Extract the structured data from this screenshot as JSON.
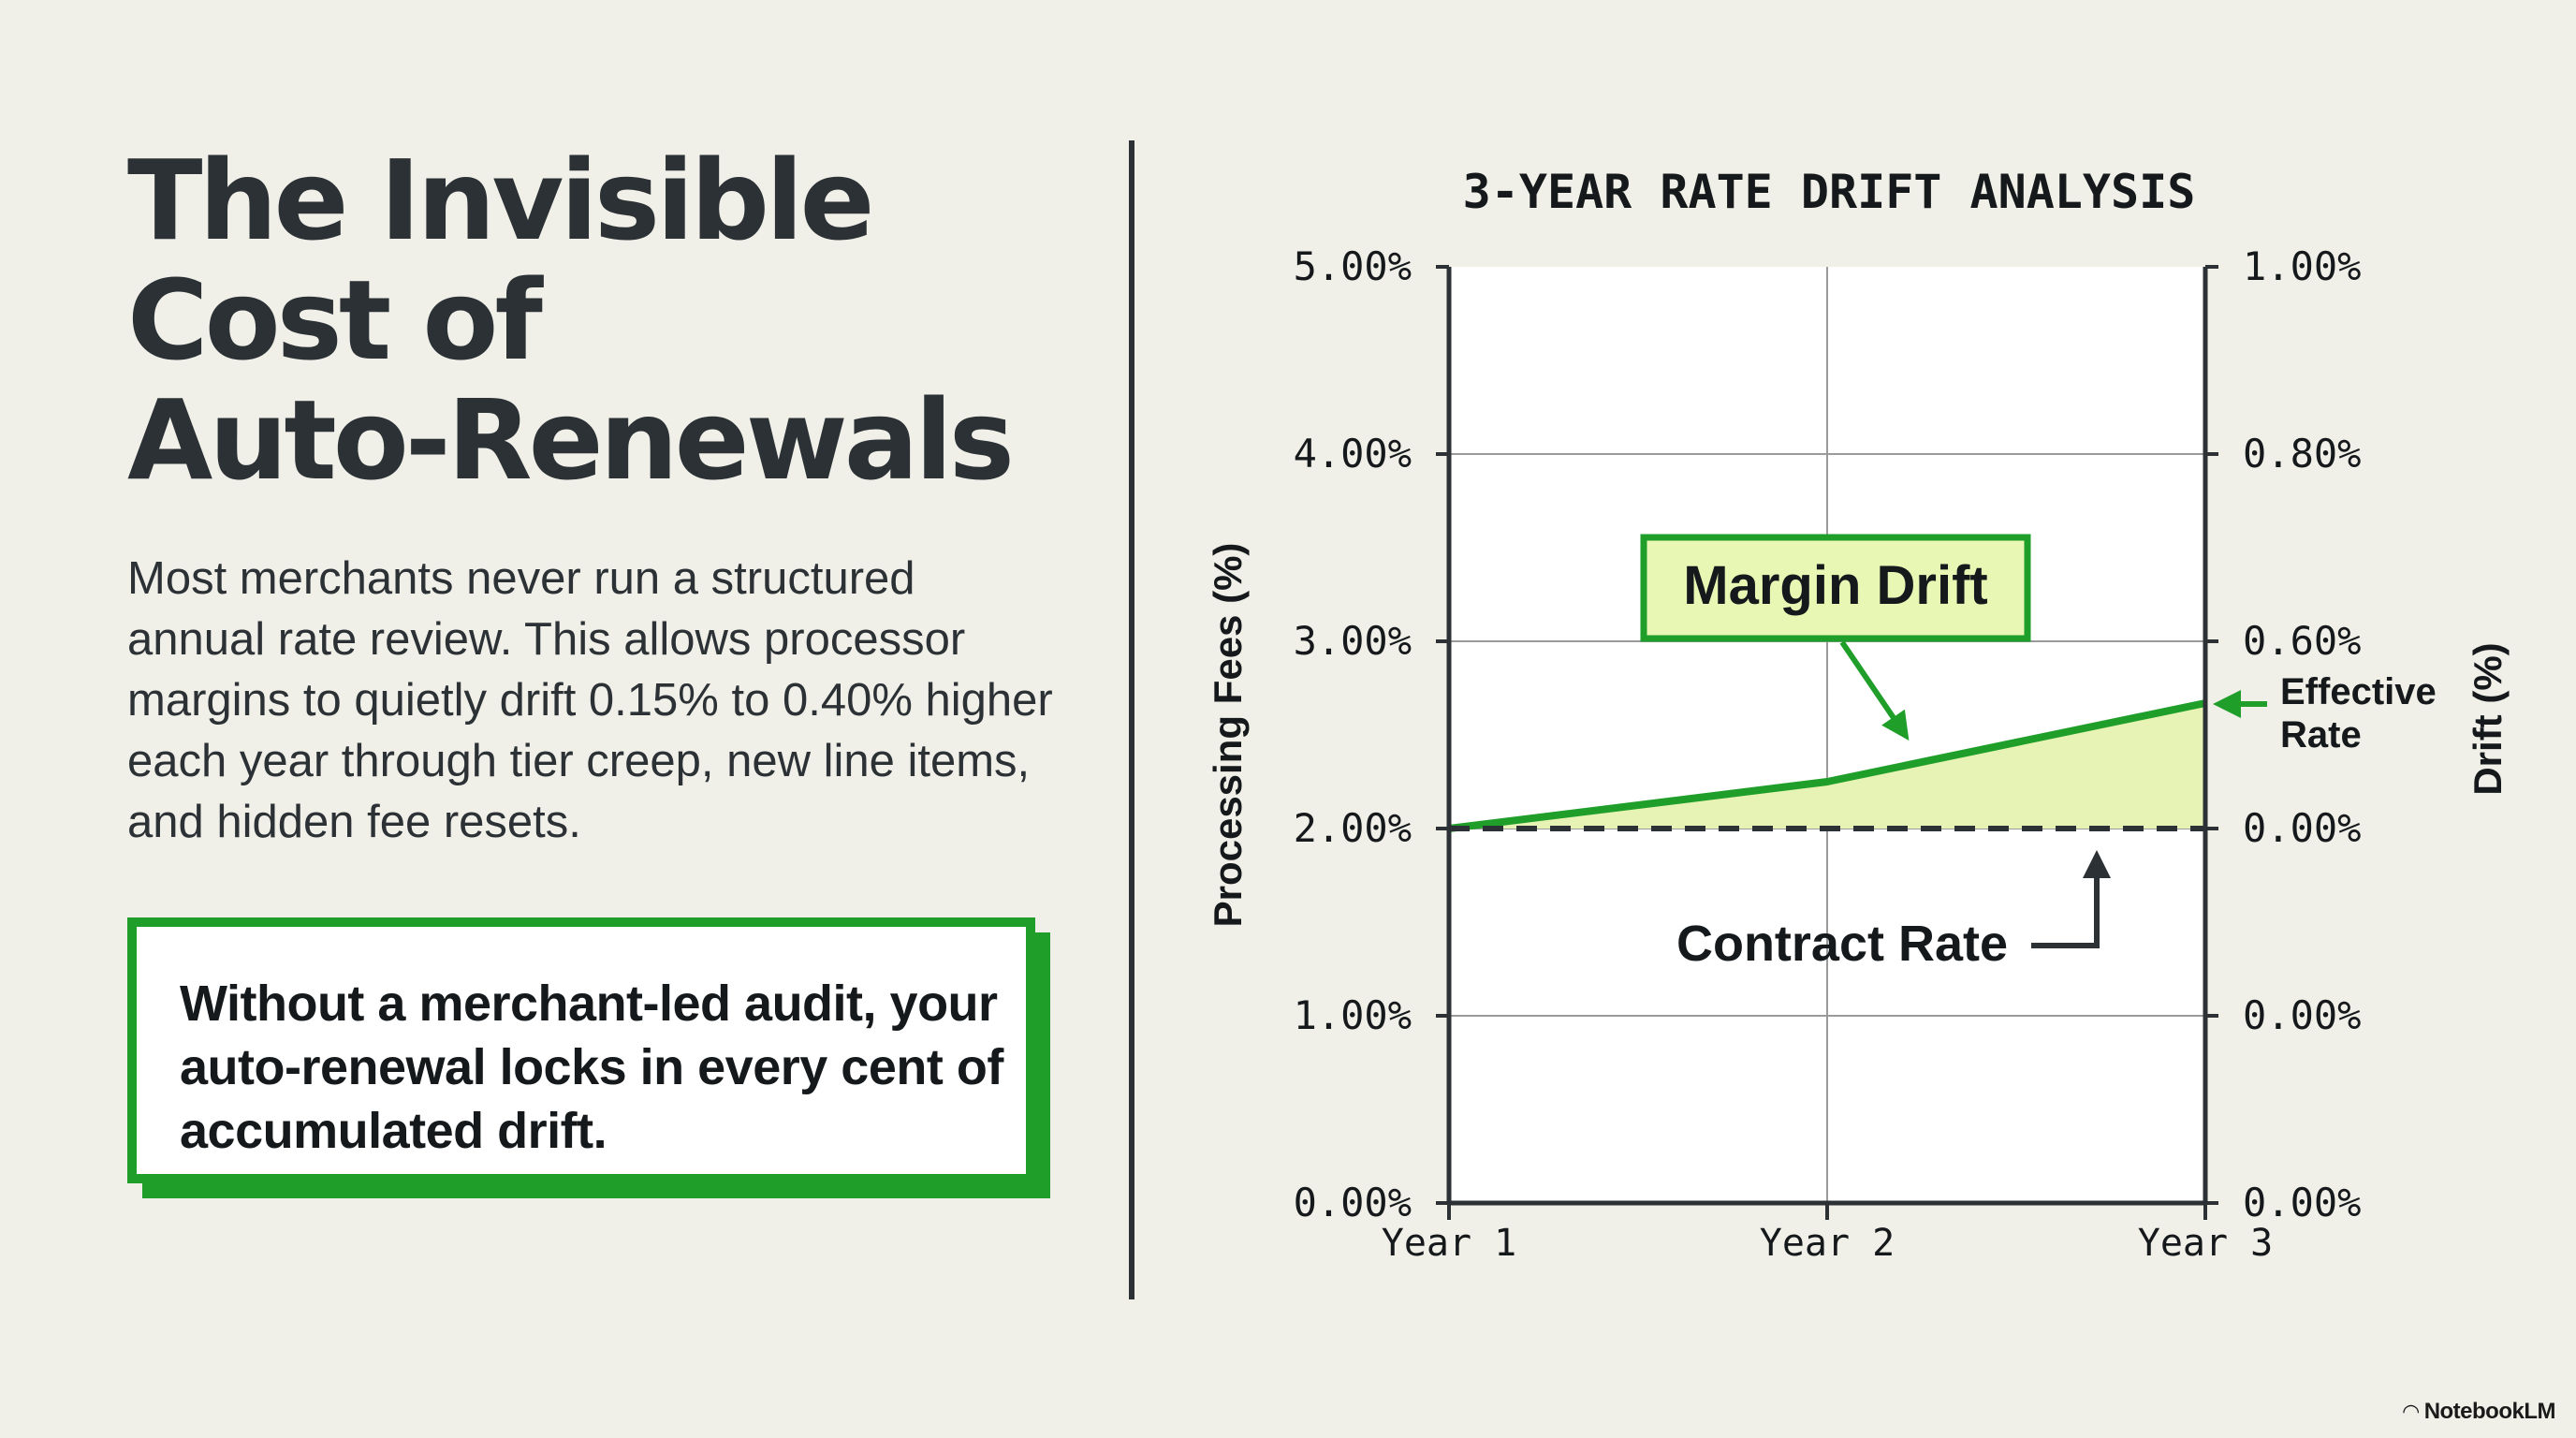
{
  "headline": {
    "line1": "The Invisible",
    "line2": "Cost of",
    "line3": "Auto-Renewals"
  },
  "body": "Most merchants never run a structured annual rate review. This allows processor margins to quietly drift 0.15% to 0.40% higher each year through tier creep, new line items, and hidden fee resets.",
  "callout": "Without a merchant-led audit, your auto-renewal locks in every cent of accumulated drift.",
  "brand": "NotebookLM",
  "colors": {
    "accent_green": "#1f9e2a",
    "fill_green": "#e7f3b4",
    "label_fill": "#e9f7b4",
    "ink": "#2b3135"
  },
  "chart_data": {
    "type": "line",
    "title": "3-YEAR RATE DRIFT ANALYSIS",
    "x": [
      "Year 1",
      "Year 2",
      "Year 3"
    ],
    "ylabel": "Processing Fees (%)",
    "y2label": "Drift (%)",
    "ylim": [
      0,
      5
    ],
    "y_ticks": [
      "0.00%",
      "1.00%",
      "2.00%",
      "3.00%",
      "4.00%",
      "5.00%"
    ],
    "y2_ticks": [
      "0.00%",
      "0.00%",
      "0.00%",
      "0.60%",
      "0.80%",
      "1.00%"
    ],
    "grid": true,
    "series": [
      {
        "name": "Effective Rate",
        "values": [
          2.0,
          2.25,
          2.67
        ],
        "style": "solid",
        "color": "#1f9e2a"
      },
      {
        "name": "Contract Rate",
        "values": [
          2.0,
          2.0,
          2.0
        ],
        "style": "dashed",
        "color": "#2b3135"
      }
    ],
    "annotations": {
      "margin_drift": "Margin Drift",
      "effective_rate_line1": "Effective",
      "effective_rate_line2": "Rate",
      "contract_rate": "Contract Rate"
    }
  }
}
